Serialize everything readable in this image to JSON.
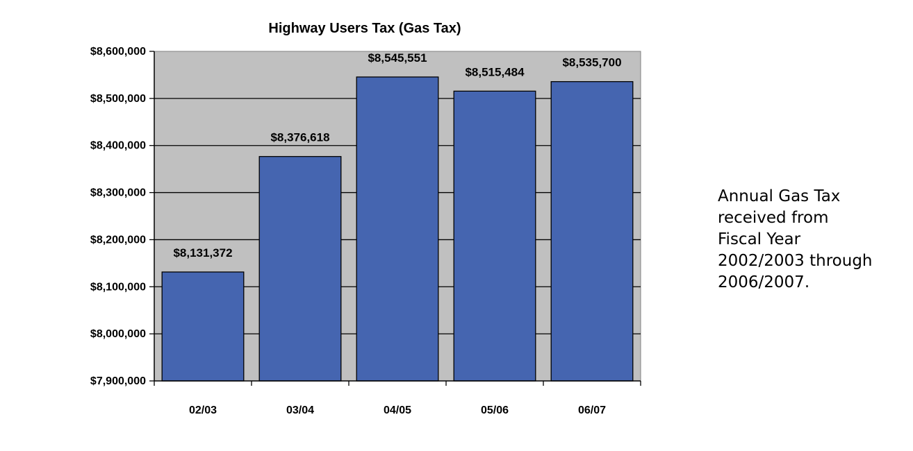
{
  "chart_data": {
    "type": "bar",
    "title": "Highway Users Tax (Gas Tax)",
    "categories": [
      "02/03",
      "03/04",
      "04/05",
      "05/06",
      "06/07"
    ],
    "values": [
      8131372,
      8376618,
      8545551,
      8515484,
      8535700
    ],
    "value_labels": [
      "$8,131,372",
      "$8,376,618",
      "$8,545,551",
      "$8,515,484",
      "$8,535,700"
    ],
    "ylim": [
      7900000,
      8600000
    ],
    "y_ticks": [
      7900000,
      8000000,
      8100000,
      8200000,
      8300000,
      8400000,
      8500000,
      8600000
    ],
    "y_tick_labels": [
      "$7,900,000",
      "$8,000,000",
      "$8,100,000",
      "$8,200,000",
      "$8,300,000",
      "$8,400,000",
      "$8,500,000",
      "$8,600,000"
    ],
    "xlabel": "",
    "ylabel": "",
    "grid": true,
    "legend": "none",
    "colors": {
      "bar": "#4565B0",
      "bar_outline": "#000000",
      "plot_background": "#C0C0C0",
      "gridline": "#000000"
    }
  },
  "side_note": {
    "lines": [
      "Annual Gas Tax",
      "received from",
      "Fiscal Year",
      "2002/2003 through",
      "2006/2007."
    ]
  }
}
